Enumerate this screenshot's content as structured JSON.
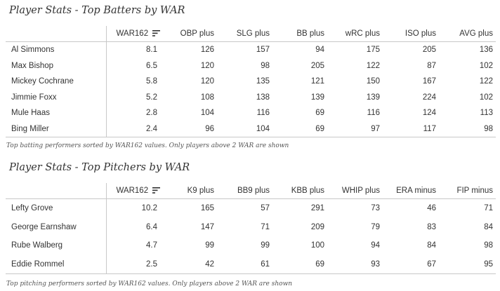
{
  "batters": {
    "title": "Player Stats - Top Batters by WAR",
    "columns": [
      "",
      "WAR162",
      "OBP plus",
      "SLG plus",
      "BB plus",
      "wRC plus",
      "ISO plus",
      "AVG plus"
    ],
    "rows": [
      [
        "Al Simmons",
        "8.1",
        "126",
        "157",
        "94",
        "175",
        "205",
        "136"
      ],
      [
        "Max Bishop",
        "6.5",
        "120",
        "98",
        "205",
        "122",
        "87",
        "102"
      ],
      [
        "Mickey Cochrane",
        "5.8",
        "120",
        "135",
        "121",
        "150",
        "167",
        "122"
      ],
      [
        "Jimmie Foxx",
        "5.2",
        "108",
        "138",
        "139",
        "139",
        "224",
        "102"
      ],
      [
        "Mule Haas",
        "2.8",
        "104",
        "116",
        "69",
        "116",
        "124",
        "113"
      ],
      [
        "Bing Miller",
        "2.4",
        "96",
        "104",
        "69",
        "97",
        "117",
        "98"
      ]
    ],
    "caption": "Top batting performers sorted by WAR162 values. Only players above 2 WAR are shown"
  },
  "pitchers": {
    "title": "Player Stats - Top Pitchers by WAR",
    "columns": [
      "",
      "WAR162",
      "K9 plus",
      "BB9 plus",
      "KBB plus",
      "WHIP plus",
      "ERA minus",
      "FIP minus"
    ],
    "rows": [
      [
        "Lefty Grove",
        "10.2",
        "165",
        "57",
        "291",
        "73",
        "46",
        "71"
      ],
      [
        "George Earnshaw",
        "6.4",
        "147",
        "71",
        "209",
        "79",
        "83",
        "84"
      ],
      [
        "Rube Walberg",
        "4.7",
        "99",
        "99",
        "100",
        "94",
        "84",
        "98"
      ],
      [
        "Eddie Rommel",
        "2.5",
        "42",
        "61",
        "69",
        "93",
        "67",
        "95"
      ]
    ],
    "caption": "Top pitching performers sorted by WAR162 values. Only players above 2 WAR are shown"
  },
  "icons": {
    "sort": "sort-descending-icon"
  },
  "colors": {
    "text": "#333333",
    "border": "#c8c8c8",
    "caption": "#555555"
  }
}
